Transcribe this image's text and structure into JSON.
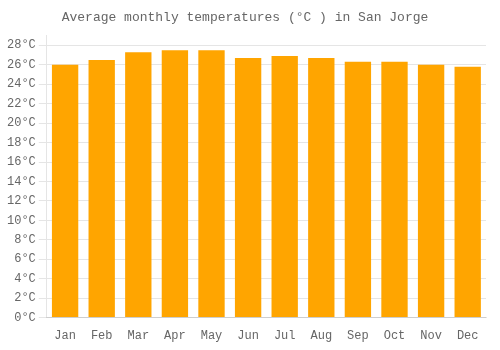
{
  "chart_data": {
    "type": "bar",
    "title": "Average monthly temperatures (°C ) in San Jorge",
    "categories": [
      "Jan",
      "Feb",
      "Mar",
      "Apr",
      "May",
      "Jun",
      "Jul",
      "Aug",
      "Sep",
      "Oct",
      "Nov",
      "Dec"
    ],
    "values": [
      26.0,
      26.5,
      27.3,
      27.5,
      27.5,
      26.7,
      26.9,
      26.7,
      26.3,
      26.3,
      26.0,
      25.8
    ],
    "color": "#FFA500",
    "ylim": [
      0,
      29
    ],
    "yticks": [
      {
        "value": 0,
        "label": "0°C"
      },
      {
        "value": 2,
        "label": "2°C"
      },
      {
        "value": 4,
        "label": "4°C"
      },
      {
        "value": 6,
        "label": "6°C"
      },
      {
        "value": 8,
        "label": "8°C"
      },
      {
        "value": 10,
        "label": "10°C"
      },
      {
        "value": 12,
        "label": "12°C"
      },
      {
        "value": 14,
        "label": "14°C"
      },
      {
        "value": 16,
        "label": "16°C"
      },
      {
        "value": 18,
        "label": "18°C"
      },
      {
        "value": 20,
        "label": "20°C"
      },
      {
        "value": 22,
        "label": "22°C"
      },
      {
        "value": 24,
        "label": "24°C"
      },
      {
        "value": 26,
        "label": "26°C"
      },
      {
        "value": 28,
        "label": "28°C"
      }
    ],
    "grid": true
  }
}
